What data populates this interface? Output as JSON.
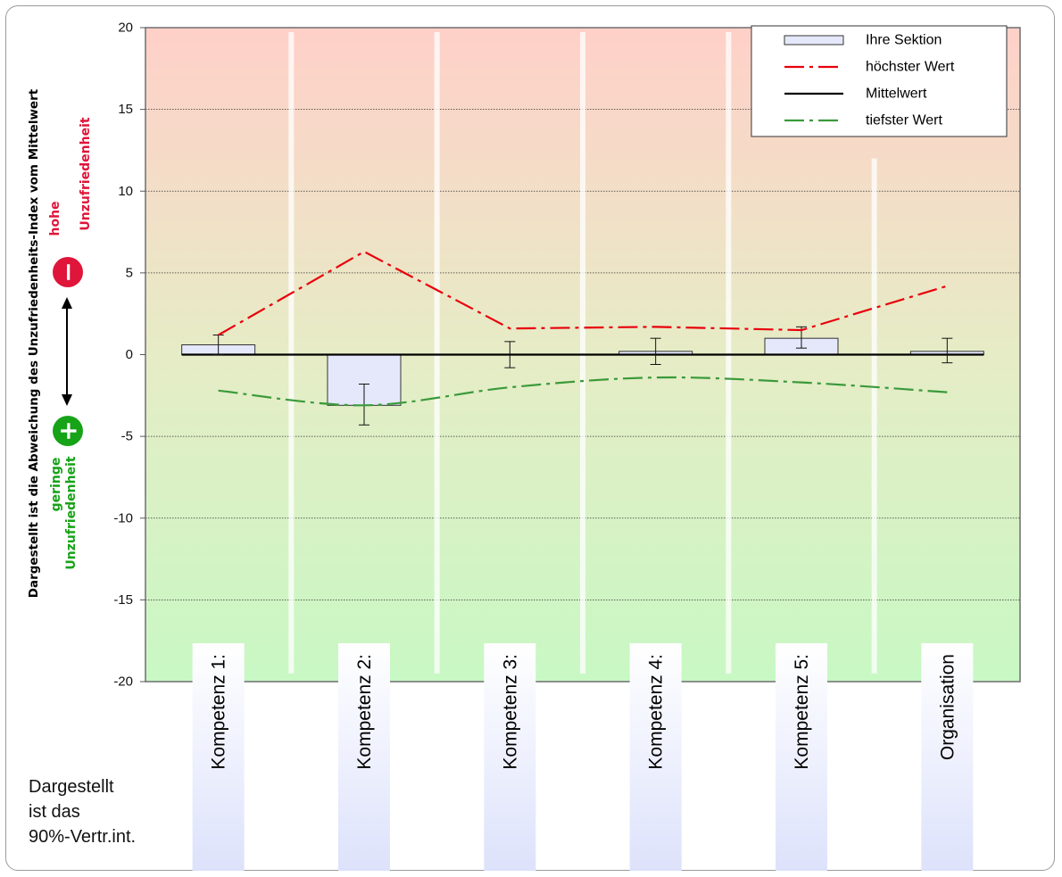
{
  "chart_data": {
    "type": "bar",
    "categories": [
      "Kompetenz 1:",
      "Kompetenz 2:",
      "Kompetenz 3:",
      "Kompetenz 4:",
      "Kompetenz 5:",
      "Organisation"
    ],
    "ylim": [
      -20,
      20
    ],
    "yticks": [
      20,
      15,
      10,
      5,
      0,
      -5,
      -10,
      -15,
      -20
    ],
    "ylabel": "Dargestellt ist die Abweichung des Unzufriedenheits-Index vom Mittelwert",
    "grid": true,
    "legend_position": "top-right",
    "series": [
      {
        "name": "Ihre Sektion",
        "kind": "bar",
        "color": "#e4e8fa",
        "values": [
          0.6,
          -3.1,
          0.0,
          0.2,
          1.0,
          0.2
        ],
        "error_low": [
          0.0,
          -4.3,
          -0.8,
          -0.6,
          0.4,
          -0.5
        ],
        "error_high": [
          1.2,
          -1.8,
          0.8,
          1.0,
          1.7,
          1.0
        ]
      },
      {
        "name": "höchster Wert",
        "kind": "line",
        "style": "dash-dot",
        "color": "#e8000b",
        "values": [
          1.2,
          6.3,
          1.6,
          1.7,
          1.5,
          4.2
        ]
      },
      {
        "name": "Mittelwert",
        "kind": "line",
        "style": "solid",
        "color": "#000000",
        "values": [
          0,
          0,
          0,
          0,
          0,
          0
        ]
      },
      {
        "name": "tiefster Wert",
        "kind": "line",
        "style": "dash-dot",
        "color": "#3a9a3a",
        "values": [
          -2.2,
          -3.1,
          -2.0,
          -1.4,
          -1.7,
          -2.3
        ]
      }
    ],
    "annotations": {
      "high_label_line1": "hohe",
      "high_label_line2": "Unzufriedenheit",
      "low_label_line1": "geringe",
      "low_label_line2": "Unzufriedenheit",
      "minus_symbol": "−",
      "plus_symbol": "+",
      "high_color": "#e0153a",
      "low_color": "#17a317"
    }
  },
  "footnote": {
    "line1": "Dargestellt",
    "line2": "ist das",
    "line3": "90%-Vertr.int."
  }
}
